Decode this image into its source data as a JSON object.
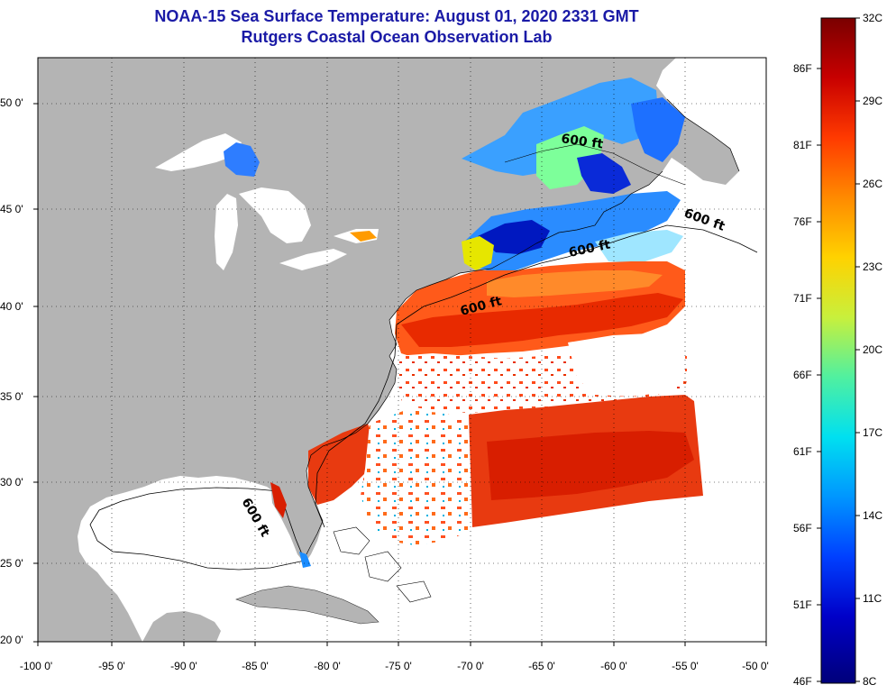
{
  "title": {
    "line1": "NOAA-15 Sea Surface Temperature:  August 01, 2020 2331 GMT",
    "line2": "Rutgers Coastal Ocean Observation Lab"
  },
  "axes": {
    "lat_labels": [
      "50 0'",
      "45 0'",
      "40 0'",
      "35 0'",
      "30 0'",
      "25 0'",
      "20 0'"
    ],
    "lon_labels": [
      "-100 0'",
      "-95 0'",
      "-90 0'",
      "-85 0'",
      "-80 0'",
      "-75 0'",
      "-70 0'",
      "-65 0'",
      "-60 0'",
      "-55 0'",
      "-50 0'"
    ]
  },
  "contour_labels": [
    "600 ft",
    "600 ft",
    "600 ft",
    "600 ft",
    "600 ft"
  ],
  "colorbar": {
    "celsius": [
      "32C",
      "29C",
      "26C",
      "23C",
      "20C",
      "17C",
      "14C",
      "11C",
      "8C"
    ],
    "fahrenheit": [
      "86F",
      "81F",
      "76F",
      "71F",
      "66F",
      "61F",
      "56F",
      "51F",
      "46F"
    ],
    "colors": [
      "#7a0000",
      "#c80000",
      "#ff3a00",
      "#ff8a00",
      "#ffd200",
      "#c8f03c",
      "#50f0a0",
      "#00e0f0",
      "#0096ff",
      "#0040ff",
      "#0000c8",
      "#00007a"
    ]
  },
  "colors": {
    "land": "#b4b4b4",
    "title": "#1a1aa6",
    "ocean_no_data": "#ffffff"
  }
}
